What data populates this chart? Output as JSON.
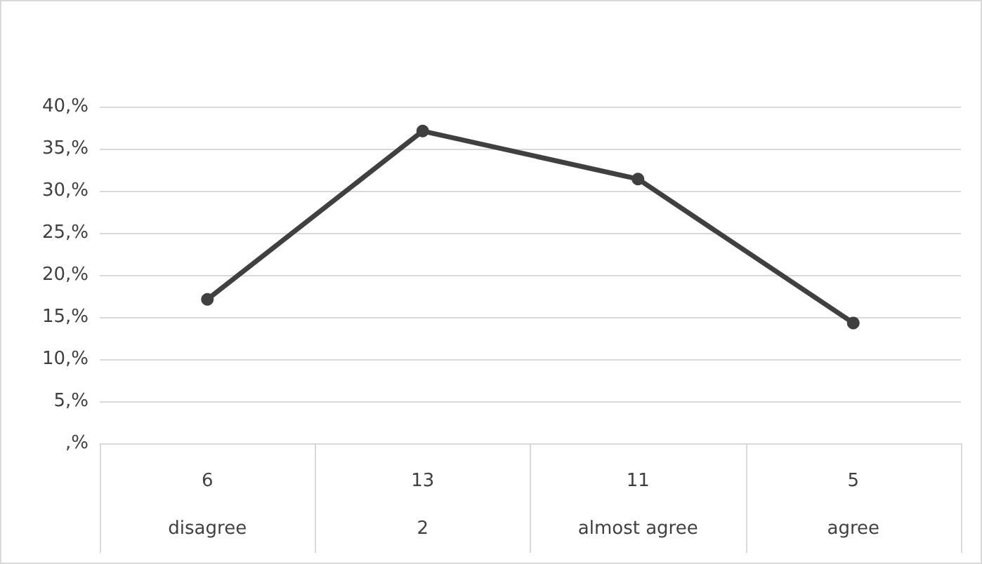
{
  "chart_data": {
    "type": "line",
    "categories": [
      "6\ndisagree",
      "13\n2",
      "11\nalmost agree",
      "5\nagree"
    ],
    "series": [
      {
        "color": "#404040",
        "values": [
          17.1,
          37.1,
          31.4,
          14.3
        ]
      }
    ],
    "ylim": [
      0,
      40
    ],
    "yticks": [
      {
        "value": 0,
        "label": ",%"
      },
      {
        "value": 5,
        "label": "5,%"
      },
      {
        "value": 10,
        "label": "10,%"
      },
      {
        "value": 15,
        "label": "15,%"
      },
      {
        "value": 20,
        "label": "20,%"
      },
      {
        "value": 25,
        "label": "25,%"
      },
      {
        "value": 30,
        "label": "30,%"
      },
      {
        "value": 35,
        "label": "35,%"
      },
      {
        "value": 40,
        "label": "40,%"
      }
    ],
    "grid": "y",
    "marker": "circle",
    "line_style": "solid"
  }
}
